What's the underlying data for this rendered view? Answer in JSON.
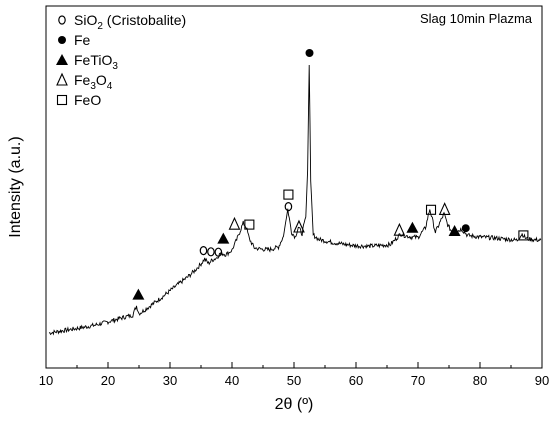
{
  "chart_data": {
    "type": "line",
    "title": "Slag 10min Plazma",
    "xlabel": "2θ (º)",
    "ylabel": "Intensity (a.u.)",
    "xlim": [
      10,
      90
    ],
    "x_ticks": [
      "10",
      "20",
      "30",
      "40",
      "50",
      "60",
      "70",
      "80",
      "90"
    ],
    "y_ticks_labels": false,
    "grid": false,
    "legend_position": "top-left",
    "colors": {
      "line": "#000000",
      "frame": "#000000"
    },
    "legend": [
      {
        "marker": "o",
        "label": "SiO",
        "sub": "2",
        "tail": " (Cristobalite)"
      },
      {
        "marker": "filled-circle",
        "label": "Fe",
        "sub": "",
        "tail": ""
      },
      {
        "marker": "filled-triangle",
        "label": "FeTiO",
        "sub": "3",
        "tail": ""
      },
      {
        "marker": "open-triangle",
        "label": "Fe",
        "sub": "3",
        "tail": "O",
        "sub2": "4"
      },
      {
        "marker": "open-square",
        "label": "FeO",
        "sub": "",
        "tail": ""
      }
    ],
    "series": [
      {
        "x": [
          10.5,
          12,
          14,
          16,
          18,
          20,
          22,
          24,
          24.6,
          25,
          25.4,
          27,
          29,
          31,
          33,
          34,
          35,
          35.6,
          36.2,
          36.8,
          37.5,
          38.2,
          39,
          40,
          41,
          41.8,
          42.3,
          42.8,
          43.6,
          44.5,
          46,
          47.5,
          48.3,
          49,
          49.6,
          50.2,
          50.7,
          51.3,
          51.9,
          52.2,
          52.45,
          52.7,
          53.1,
          54,
          56,
          58,
          60,
          62,
          64,
          65.5,
          66.5,
          67.2,
          68,
          69,
          70,
          71.2,
          71.9,
          72.3,
          72.8,
          73.5,
          74.2,
          74.8,
          75.5,
          76.3,
          77,
          78,
          80,
          82,
          84,
          86,
          86.8,
          87.3,
          87.8,
          89,
          89.8
        ],
        "y": [
          0,
          0.4,
          0.9,
          1.4,
          2.0,
          2.8,
          3.7,
          4.5,
          6.8,
          4.9,
          5.2,
          7.0,
          9.3,
          11.8,
          14.2,
          15.6,
          17.3,
          18.5,
          17.4,
          18.2,
          18.8,
          20.0,
          19.6,
          20.7,
          24.2,
          27.5,
          26.5,
          23.5,
          21.3,
          21.0,
          20.8,
          21.5,
          24.2,
          31.0,
          25.2,
          24.0,
          26.5,
          24.8,
          29.0,
          40.5,
          67.0,
          38.0,
          24.5,
          23.4,
          22.7,
          22.2,
          21.8,
          21.7,
          21.9,
          22.1,
          23.6,
          24.8,
          24.3,
          24.0,
          23.9,
          26.3,
          31.0,
          28.5,
          25.2,
          27.5,
          29.8,
          27.0,
          25.2,
          25.4,
          26.0,
          24.4,
          24.0,
          23.8,
          23.5,
          23.2,
          24.8,
          23.8,
          23.5,
          23.3,
          23.2
        ]
      }
    ],
    "annotations": [
      {
        "marker": "filled-triangle",
        "x": 24.9,
        "y": 9.6
      },
      {
        "marker": "o",
        "x": 35.4,
        "y": 20.6
      },
      {
        "marker": "o",
        "x": 36.6,
        "y": 20.3
      },
      {
        "marker": "o",
        "x": 37.8,
        "y": 20.2
      },
      {
        "marker": "filled-triangle",
        "x": 38.6,
        "y": 23.6
      },
      {
        "marker": "open-triangle",
        "x": 40.4,
        "y": 27.2
      },
      {
        "marker": "open-square",
        "x": 42.8,
        "y": 27.1
      },
      {
        "marker": "open-square",
        "x": 49.1,
        "y": 34.6
      },
      {
        "marker": "o",
        "x": 49.1,
        "y": 31.6
      },
      {
        "marker": "open-triangle",
        "x": 50.8,
        "y": 26.5
      },
      {
        "marker": "filled-circle",
        "x": 52.5,
        "y": 70.0
      },
      {
        "marker": "open-triangle",
        "x": 67.0,
        "y": 25.7
      },
      {
        "marker": "filled-triangle",
        "x": 69.1,
        "y": 26.3
      },
      {
        "marker": "open-square",
        "x": 72.1,
        "y": 30.8
      },
      {
        "marker": "open-triangle",
        "x": 74.3,
        "y": 30.9
      },
      {
        "marker": "filled-triangle",
        "x": 75.9,
        "y": 25.5
      },
      {
        "marker": "filled-circle",
        "x": 77.7,
        "y": 26.2
      },
      {
        "marker": "open-square",
        "x": 87.0,
        "y": 24.4
      }
    ]
  }
}
